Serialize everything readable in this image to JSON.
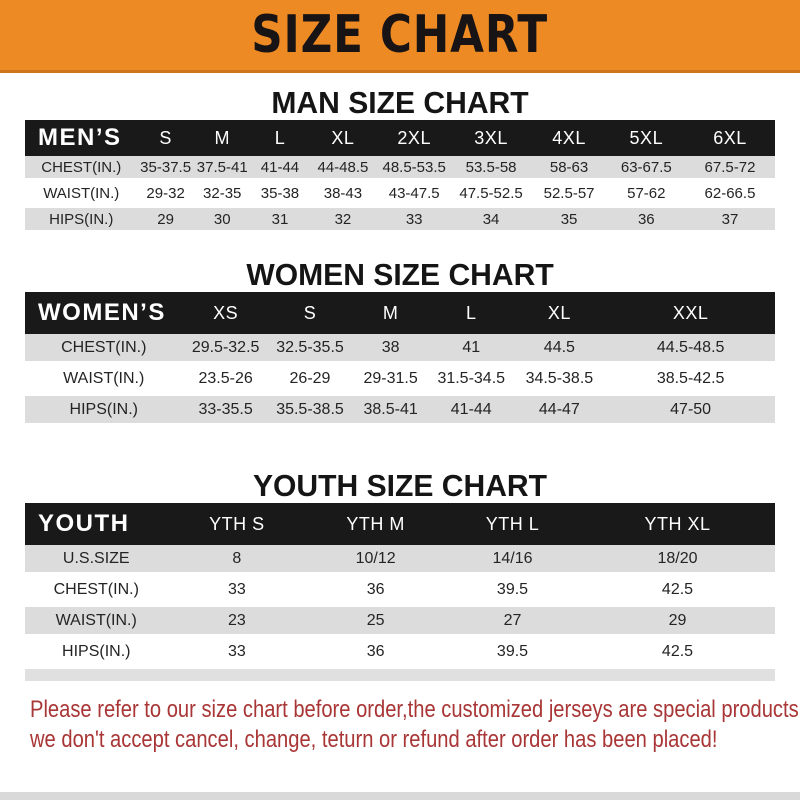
{
  "banner": {
    "title": "SIZE CHART"
  },
  "chart_data": [
    {
      "type": "table",
      "title": "MAN SIZE CHART",
      "corner_label": "MEN’S",
      "columns": [
        "S",
        "M",
        "L",
        "XL",
        "2XL",
        "3XL",
        "4XL",
        "5XL",
        "6XL"
      ],
      "rows": [
        {
          "label": "CHEST(IN.)",
          "values": [
            "35-37.5",
            "37.5-41",
            "41-44",
            "44-48.5",
            "48.5-53.5",
            "53.5-58",
            "58-63",
            "63-67.5",
            "67.5-72"
          ]
        },
        {
          "label": "WAIST(IN.)",
          "values": [
            "29-32",
            "32-35",
            "35-38",
            "38-43",
            "43-47.5",
            "47.5-52.5",
            "52.5-57",
            "57-62",
            "62-66.5"
          ]
        },
        {
          "label": "HIPS(IN.)",
          "values": [
            "29",
            "30",
            "31",
            "32",
            "33",
            "34",
            "35",
            "36",
            "37"
          ]
        }
      ]
    },
    {
      "type": "table",
      "title": "WOMEN SIZE CHART",
      "corner_label": "WOMEN’S",
      "columns": [
        "XS",
        "S",
        "M",
        "L",
        "XL",
        "XXL"
      ],
      "rows": [
        {
          "label": "CHEST(IN.)",
          "values": [
            "29.5-32.5",
            "32.5-35.5",
            "38",
            "41",
            "44.5",
            "44.5-48.5"
          ]
        },
        {
          "label": "WAIST(IN.)",
          "values": [
            "23.5-26",
            "26-29",
            "29-31.5",
            "31.5-34.5",
            "34.5-38.5",
            "38.5-42.5"
          ]
        },
        {
          "label": "HIPS(IN.)",
          "values": [
            "33-35.5",
            "35.5-38.5",
            "38.5-41",
            "41-44",
            "44-47",
            "47-50"
          ]
        }
      ]
    },
    {
      "type": "table",
      "title": "YOUTH SIZE CHART",
      "corner_label": "YOUTH",
      "columns": [
        "YTH S",
        "YTH M",
        "YTH L",
        "YTH XL"
      ],
      "rows": [
        {
          "label": "U.S.SIZE",
          "values": [
            "8",
            "10/12",
            "14/16",
            "18/20"
          ]
        },
        {
          "label": "CHEST(IN.)",
          "values": [
            "33",
            "36",
            "39.5",
            "42.5"
          ]
        },
        {
          "label": "WAIST(IN.)",
          "values": [
            "23",
            "25",
            "27",
            "29"
          ]
        },
        {
          "label": "HIPS(IN.)",
          "values": [
            "33",
            "36",
            "39.5",
            "42.5"
          ]
        }
      ]
    }
  ],
  "note": {
    "line1": "Please refer to our size chart before order,the customized jerseys are special products,",
    "line2": "we don't accept cancel, change, teturn or refund after order has been placed!"
  },
  "colors": {
    "banner_orange": "#ee8a23",
    "banner_border": "#cd741c",
    "header_black": "#191919",
    "row_gray": "#dcdcdc",
    "note_red": "#a93636"
  }
}
